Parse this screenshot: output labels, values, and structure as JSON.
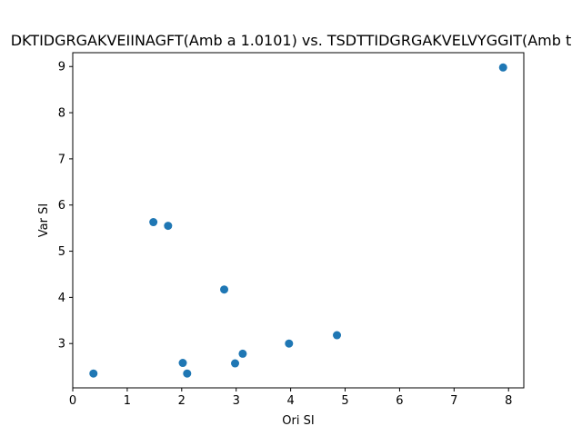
{
  "chart_data": {
    "type": "scatter",
    "title": "DKTIDGRGAKVEIINAGFT(Amb a 1.0101) vs. TSDTTIDGRGAKVELVYGGIT(Amb t",
    "xlabel": "Ori SI",
    "ylabel": "Var SI",
    "xlim": [
      0,
      8.28
    ],
    "ylim": [
      2.04,
      9.3
    ],
    "xticks": [
      0,
      1,
      2,
      3,
      4,
      5,
      6,
      7,
      8
    ],
    "yticks": [
      3,
      4,
      5,
      6,
      7,
      8,
      9
    ],
    "grid": false,
    "color": "#1f77b4",
    "points": [
      {
        "x": 0.38,
        "y": 2.35
      },
      {
        "x": 1.48,
        "y": 5.63
      },
      {
        "x": 1.75,
        "y": 5.55
      },
      {
        "x": 2.02,
        "y": 2.58
      },
      {
        "x": 2.1,
        "y": 2.35
      },
      {
        "x": 2.78,
        "y": 4.17
      },
      {
        "x": 2.98,
        "y": 2.57
      },
      {
        "x": 3.12,
        "y": 2.78
      },
      {
        "x": 3.97,
        "y": 3.0
      },
      {
        "x": 4.85,
        "y": 3.18
      },
      {
        "x": 7.9,
        "y": 8.98
      }
    ]
  }
}
